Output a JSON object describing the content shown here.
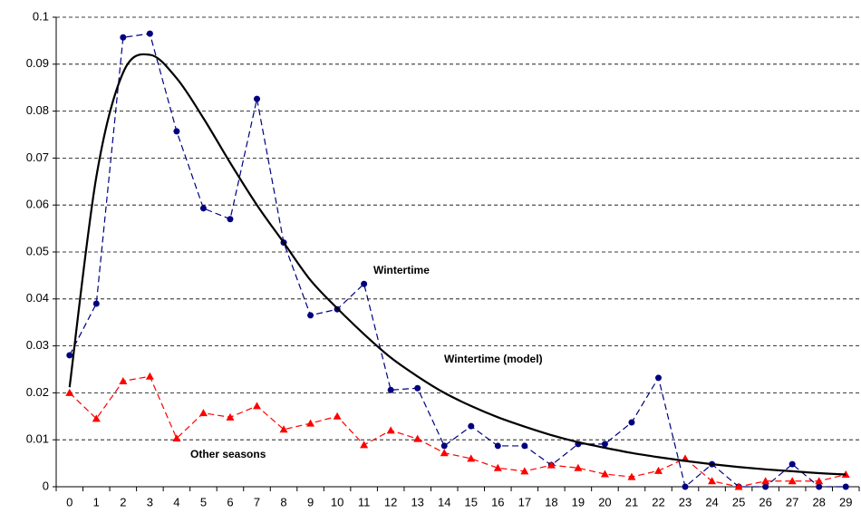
{
  "chart_data": {
    "type": "line",
    "categories": [
      "0",
      "1",
      "2",
      "3",
      "4",
      "5",
      "6",
      "7",
      "8",
      "9",
      "10",
      "11",
      "12",
      "13",
      "14",
      "15",
      "16",
      "17",
      "18",
      "19",
      "20",
      "21",
      "22",
      "23",
      "24",
      "25",
      "26",
      "27",
      "28",
      "29"
    ],
    "series": [
      {
        "name": "Wintertime",
        "color": "#000080",
        "style": "dashed",
        "marker": "circle",
        "values": [
          0.028,
          0.039,
          0.0957,
          0.0965,
          0.0757,
          0.0593,
          0.057,
          0.0826,
          0.052,
          0.0365,
          0.0378,
          0.0432,
          0.0206,
          0.021,
          0.0087,
          0.0129,
          0.0087,
          0.0087,
          0.0046,
          0.0091,
          0.0091,
          0.0137,
          0.0232,
          0,
          0.0048,
          0,
          0,
          0.0048,
          0,
          0
        ]
      },
      {
        "name": "Other seasons",
        "color": "#ff0000",
        "style": "dashed",
        "marker": "triangle",
        "values": [
          0.02,
          0.0145,
          0.0225,
          0.0235,
          0.0103,
          0.0157,
          0.0148,
          0.0172,
          0.0122,
          0.0135,
          0.015,
          0.0089,
          0.012,
          0.0102,
          0.0072,
          0.006,
          0.004,
          0.0033,
          0.0046,
          0.004,
          0.0027,
          0.0021,
          0.0034,
          0.006,
          0.0012,
          0,
          0.0012,
          0.0012,
          0.0012,
          0.0026
        ]
      },
      {
        "name": "Wintertime (model)",
        "color": "#000000",
        "style": "solid",
        "marker": "none",
        "values": [
          0.0212,
          0.066,
          0.0882,
          0.092,
          0.087,
          0.0785,
          0.069,
          0.06,
          0.052,
          0.044,
          0.038,
          0.0325,
          0.0275,
          0.0235,
          0.02,
          0.0172,
          0.0148,
          0.0128,
          0.011,
          0.0095,
          0.0083,
          0.0072,
          0.0063,
          0.0055,
          0.0048,
          0.0042,
          0.0037,
          0.0033,
          0.0029,
          0.0026
        ]
      }
    ],
    "ylim": [
      0,
      0.1
    ],
    "yticks": [
      0,
      0.01,
      0.02,
      0.03,
      0.04,
      0.05,
      0.06,
      0.07,
      0.08,
      0.09,
      0.1
    ],
    "grid": true
  }
}
